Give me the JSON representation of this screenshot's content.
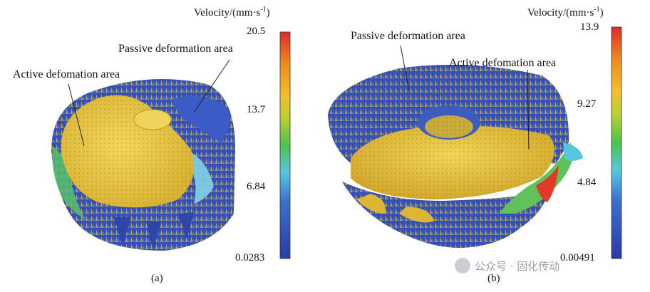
{
  "panel_a": {
    "caption": "(a)",
    "labels": {
      "passive": "Passive deformation area",
      "active": "Active defomation area"
    },
    "colorbar": {
      "title": "Velocity/(mm·s",
      "title_sup": "-1",
      "title_close": ")",
      "ticks": [
        "20.5",
        "13.7",
        "6.84",
        "0.0283"
      ]
    }
  },
  "panel_b": {
    "caption": "(b)",
    "labels": {
      "passive": "Passive deformation area",
      "active": "Active defomation area"
    },
    "colorbar": {
      "title": "Velocity/(mm·s",
      "title_sup": "-1",
      "title_close": ")",
      "ticks": [
        "13.9",
        "9.27",
        "4.84",
        "0.00491"
      ]
    }
  },
  "watermark": {
    "text": "公众号 · 固化传动"
  },
  "colors": {
    "colorbar_stops": [
      "#2b3aa8",
      "#3b6fd0",
      "#55c8e0",
      "#4cc44c",
      "#b8d030",
      "#f4c02a",
      "#f08a20",
      "#e02a2a"
    ],
    "surface_yellow": "#e8c73a",
    "surface_blue": "#3450b8"
  }
}
